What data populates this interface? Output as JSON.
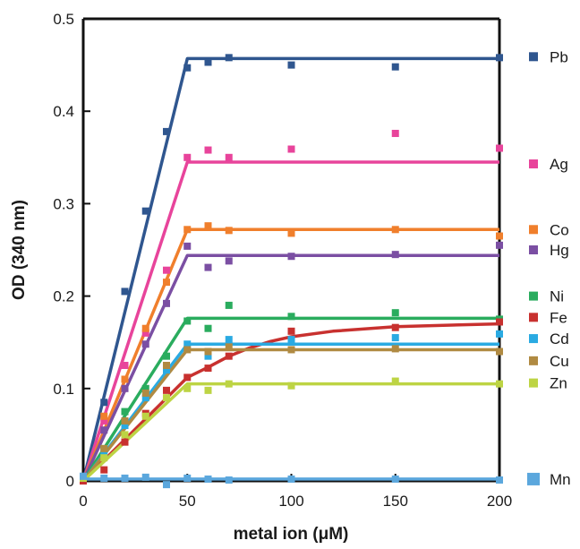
{
  "chart_data": {
    "type": "scatter",
    "title": "",
    "xlabel": "metal ion (μM)",
    "ylabel": "OD (340 nm)",
    "xlim": [
      0,
      200
    ],
    "ylim": [
      0,
      0.5
    ],
    "x_ticks": [
      0,
      50,
      100,
      150,
      200
    ],
    "y_ticks": [
      0,
      0.1,
      0.2,
      0.3,
      0.4,
      0.5
    ],
    "x_tick_labels": [
      "0",
      "50",
      "100",
      "150",
      "200"
    ],
    "y_tick_labels": [
      "0",
      "0.1",
      "0.2",
      "0.3",
      "0.4",
      "0.5"
    ],
    "grid": false,
    "legend_position": "right",
    "x": [
      0,
      10,
      20,
      30,
      40,
      50,
      60,
      70,
      100,
      150,
      200
    ],
    "series": [
      {
        "name": "Pb",
        "color": "#2f568f",
        "values": [
          0.003,
          0.085,
          0.205,
          0.292,
          0.378,
          0.447,
          0.453,
          0.458,
          0.45,
          0.448,
          0.458
        ],
        "fit": [
          [
            0,
            0
          ],
          [
            50,
            0.457
          ],
          [
            200,
            0.457
          ]
        ],
        "legend_y": 0.459
      },
      {
        "name": "Ag",
        "color": "#e8449b",
        "values": [
          0.003,
          0.065,
          0.125,
          0.16,
          0.228,
          0.35,
          0.358,
          0.35,
          0.359,
          0.376,
          0.36
        ],
        "fit": [
          [
            0,
            0
          ],
          [
            50,
            0.345
          ],
          [
            200,
            0.345
          ]
        ],
        "legend_y": 0.343
      },
      {
        "name": "Co",
        "color": "#f07f2c",
        "values": [
          0.003,
          0.07,
          0.11,
          0.165,
          0.215,
          0.272,
          0.276,
          0.271,
          0.268,
          0.272,
          0.265
        ],
        "fit": [
          [
            0,
            0
          ],
          [
            50,
            0.272
          ],
          [
            200,
            0.272
          ]
        ],
        "legend_y": 0.272
      },
      {
        "name": "Hg",
        "color": "#7b4fa3",
        "values": [
          0.003,
          0.055,
          0.1,
          0.148,
          0.192,
          0.254,
          0.231,
          0.238,
          0.243,
          0.245,
          0.255
        ],
        "fit": [
          [
            0,
            0
          ],
          [
            50,
            0.244
          ],
          [
            200,
            0.244
          ]
        ],
        "legend_y": 0.25
      },
      {
        "name": "Ni",
        "color": "#2aac5e",
        "values": [
          0.003,
          0.035,
          0.075,
          0.1,
          0.135,
          0.173,
          0.165,
          0.19,
          0.178,
          0.182,
          0.175
        ],
        "fit": [
          [
            0,
            0
          ],
          [
            50,
            0.176
          ],
          [
            200,
            0.176
          ]
        ],
        "legend_y": 0.2
      },
      {
        "name": "Fe",
        "color": "#c8312f",
        "values": [
          0.0,
          0.012,
          0.042,
          0.073,
          0.098,
          0.112,
          0.122,
          0.135,
          0.162,
          0.166,
          0.172
        ],
        "fit": [
          [
            0,
            0
          ],
          [
            50,
            0.112
          ],
          [
            60,
            0.123
          ],
          [
            70,
            0.135
          ],
          [
            80,
            0.144
          ],
          [
            90,
            0.151
          ],
          [
            100,
            0.156
          ],
          [
            120,
            0.162
          ],
          [
            150,
            0.167
          ],
          [
            200,
            0.17
          ]
        ],
        "legend_y": 0.177
      },
      {
        "name": "Cd",
        "color": "#2aaae2",
        "values": [
          0.005,
          0.03,
          0.06,
          0.09,
          0.12,
          0.148,
          0.135,
          0.153,
          0.153,
          0.155,
          0.159
        ],
        "fit": [
          [
            0,
            0
          ],
          [
            50,
            0.148
          ],
          [
            200,
            0.148
          ]
        ],
        "legend_y": 0.154
      },
      {
        "name": "Cu",
        "color": "#b08a42",
        "values": [
          0.003,
          0.035,
          0.065,
          0.095,
          0.125,
          0.142,
          0.14,
          0.145,
          0.142,
          0.143,
          0.14
        ],
        "fit": [
          [
            0,
            0
          ],
          [
            50,
            0.142
          ],
          [
            200,
            0.142
          ]
        ],
        "legend_y": 0.13
      },
      {
        "name": "Zn",
        "color": "#bdd444",
        "values": [
          0.003,
          0.025,
          0.05,
          0.07,
          0.09,
          0.1,
          0.098,
          0.105,
          0.103,
          0.108,
          0.105
        ],
        "fit": [
          [
            0,
            0
          ],
          [
            50,
            0.105
          ],
          [
            200,
            0.105
          ]
        ],
        "legend_y": 0.106
      },
      {
        "name": "Mn",
        "color": "#5ba7dd",
        "values": [
          0.005,
          0.003,
          0.003,
          0.004,
          -0.004,
          0.003,
          0.002,
          0.001,
          0.002,
          0.002,
          0.001
        ],
        "fit": [
          [
            0,
            0.002
          ],
          [
            200,
            0.002
          ]
        ],
        "legend_y": 0.002,
        "legend_marker_large": true
      }
    ]
  }
}
